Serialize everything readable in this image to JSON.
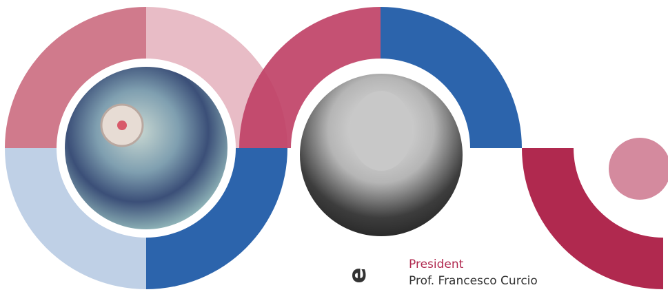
{
  "caption": {
    "fragment": "e",
    "role": "President",
    "name": "Prof. Francesco Curcio"
  }
}
